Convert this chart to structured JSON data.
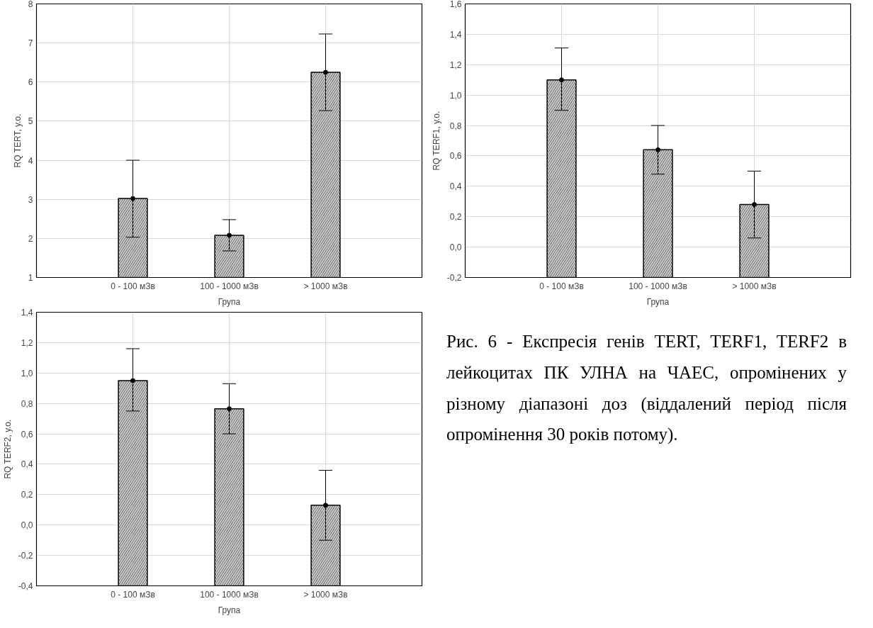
{
  "chart_data": [
    {
      "type": "bar",
      "xlabel": "Група",
      "ylabel": "RQ TERT, у.о.",
      "categories": [
        "0 - 100 мЗв",
        "100 - 1000 мЗв",
        "> 1000 мЗв"
      ],
      "grid": true,
      "series": [
        {
          "type": "bar",
          "color": "#000000",
          "base": [
            1,
            1,
            1
          ],
          "values": [
            2.02,
            1.08,
            5.25
          ],
          "errors": [
            [
              2.03,
              4.0
            ],
            [
              1.68,
              2.48
            ],
            [
              5.27,
              7.23
            ]
          ]
        },
        {
          "type": "scatter",
          "marker": "circle",
          "color": "#000000",
          "values": [
            3.02,
            2.08,
            6.25
          ]
        }
      ],
      "ylim": [
        1,
        8
      ],
      "yticks": [
        1,
        2,
        3,
        4,
        5,
        6,
        7,
        8
      ]
    },
    {
      "type": "bar",
      "xlabel": "Група",
      "ylabel": "RQ TERF1, у.о.",
      "categories": [
        "0 - 100 мЗв",
        "100 - 1000 мЗв",
        "> 1000 мЗв"
      ],
      "grid": true,
      "series": [
        {
          "type": "bar",
          "color": "#000000",
          "base": [
            -0.2,
            -0.2,
            -0.2
          ],
          "values": [
            1.3,
            0.84,
            0.48
          ],
          "errors": [
            [
              0.9,
              1.31
            ],
            [
              0.48,
              0.8
            ],
            [
              0.06,
              0.5
            ]
          ]
        },
        {
          "type": "scatter",
          "marker": "circle",
          "color": "#000000",
          "values": [
            1.1,
            0.64,
            0.28
          ]
        }
      ],
      "ylim": [
        -0.2,
        1.6
      ],
      "yticks": [
        {
          "value": -0.2,
          "label": "-0,2"
        },
        {
          "value": 0,
          "label": "0,0"
        },
        {
          "value": 0.2,
          "label": "0,2"
        },
        {
          "value": 0.4,
          "label": "0,4"
        },
        {
          "value": 0.6,
          "label": "0,6"
        },
        {
          "value": 0.8,
          "label": "0,8"
        },
        {
          "value": 1.0,
          "label": "1,0"
        },
        {
          "value": 1.2,
          "label": "1,2"
        },
        {
          "value": 1.4,
          "label": "1,4"
        },
        {
          "value": 1.6,
          "label": "1,6"
        }
      ]
    },
    {
      "type": "bar",
      "xlabel": "Група",
      "ylabel": "RQ TERF2, у.о.",
      "categories": [
        "0 - 100 мЗв",
        "100 - 1000 мЗв",
        "> 1000 мЗв"
      ],
      "grid": true,
      "series": [
        {
          "type": "bar",
          "color": "#000000",
          "base": [
            -0.4,
            -0.4,
            -0.4
          ],
          "values": [
            1.35,
            1.165,
            0.53
          ],
          "errors": [
            [
              0.75,
              1.16
            ],
            [
              0.6,
              0.93
            ],
            [
              -0.1,
              0.36
            ]
          ]
        },
        {
          "type": "scatter",
          "marker": "circle",
          "color": "#000000",
          "values": [
            0.95,
            0.765,
            0.13
          ]
        }
      ],
      "ylim": [
        -0.4,
        1.4
      ],
      "yticks": [
        {
          "value": -0.4,
          "label": "-0,4"
        },
        {
          "value": -0.2,
          "label": "-0,2"
        },
        {
          "value": 0,
          "label": "0,0"
        },
        {
          "value": 0.2,
          "label": "0,2"
        },
        {
          "value": 0.4,
          "label": "0,4"
        },
        {
          "value": 0.6,
          "label": "0,6"
        },
        {
          "value": 0.8,
          "label": "0,8"
        },
        {
          "value": 1.0,
          "label": "1,0"
        },
        {
          "value": 1.2,
          "label": "1,2"
        },
        {
          "value": 1.4,
          "label": "1,4"
        }
      ]
    },
    {
      "type": "other",
      "annotations": [
        "Рис. 6 - Експресія генів TERT, TERF1, TERF2 в лейкоцитах ПК УЛНА на ЧАЕС, опромінених у різному діапазоні доз (віддалений період після опромінення 30 років потому)."
      ]
    }
  ]
}
